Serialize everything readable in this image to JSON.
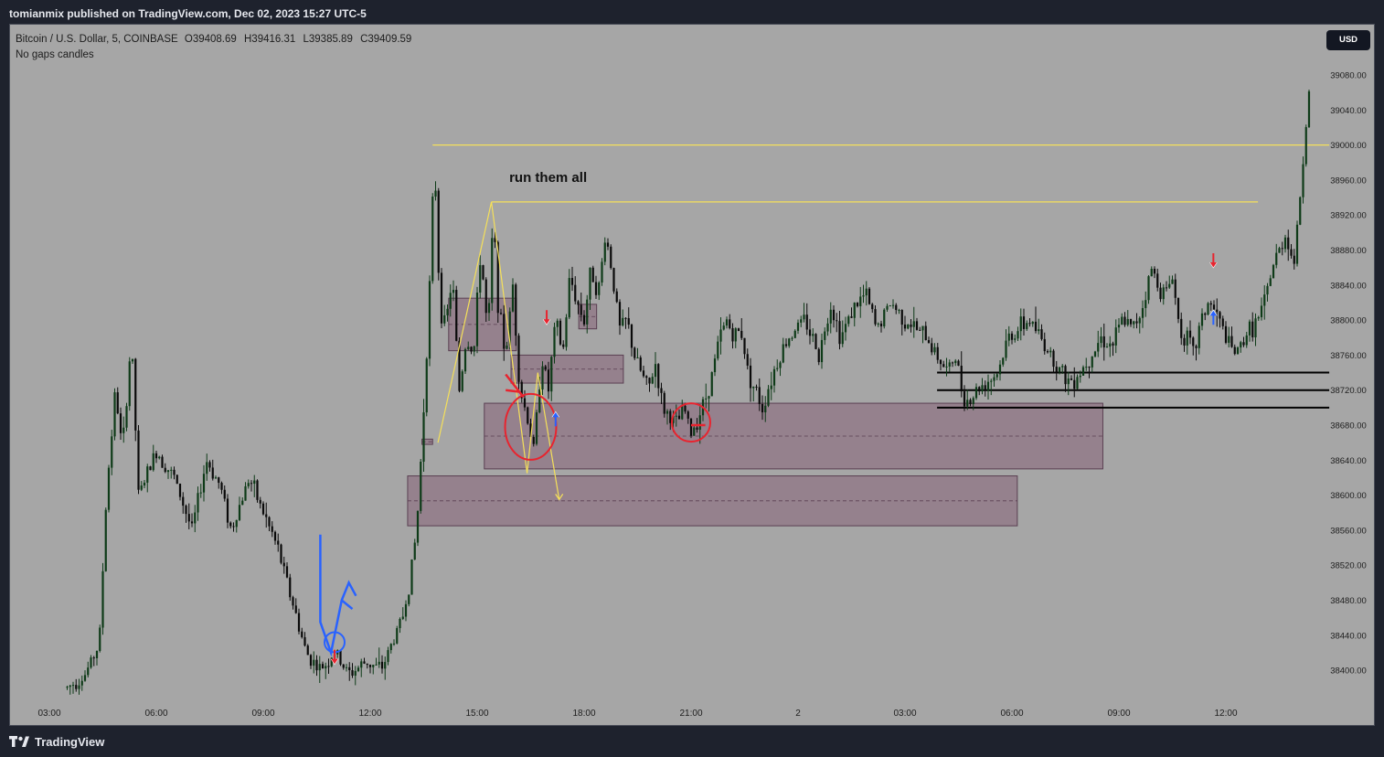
{
  "header": {
    "publisher": "tomianmix published on TradingView.com, Dec 02, 2023 15:27 UTC-5"
  },
  "legend": {
    "symbol": "Bitcoin / U.S. Dollar, 5, COINBASE",
    "open": "O39408.69",
    "high": "H39416.31",
    "low": "L39385.89",
    "close": "C39409.59",
    "note": "No gaps candles"
  },
  "currency_badge": "USD",
  "footer": {
    "brand": "TradingView",
    "logo_icon": "tradingview-logo-icon"
  },
  "colors": {
    "background": "#1e222d",
    "chart_bg": "#a6a6a6",
    "candle_up": "#0e3b18",
    "candle_down": "#0a0a0a",
    "zone_fill": "#8a6a7e",
    "level_yellow": "#f5e05a",
    "annotation_red": "#e8242f",
    "annotation_blue": "#2962ff"
  },
  "annotations": {
    "text": "run them all",
    "arrows": [
      {
        "kind": "down",
        "color": "red",
        "time": "09:00"
      },
      {
        "kind": "down",
        "color": "red",
        "time": "14:55"
      },
      {
        "kind": "up",
        "color": "blue",
        "time": "15:15"
      },
      {
        "kind": "down",
        "color": "red",
        "time": "09:05 (day 2)"
      },
      {
        "kind": "up",
        "color": "blue",
        "time": "09:05 (day 2)"
      }
    ],
    "circles": [
      {
        "color": "red",
        "time": "14:30",
        "price": 38680
      },
      {
        "color": "red",
        "time": "19:00",
        "price": 38683
      },
      {
        "color": "blue",
        "time": "09:00",
        "price": 38430
      }
    ]
  },
  "chart_data": {
    "type": "candlestick",
    "symbol": "Bitcoin / U.S. Dollar",
    "interval": "5",
    "exchange": "COINBASE",
    "ylim": [
      38375,
      39120
    ],
    "y_ticks": [
      "39080.00",
      "39040.00",
      "39000.00",
      "38960.00",
      "38920.00",
      "38880.00",
      "38840.00",
      "38800.00",
      "38760.00",
      "38720.00",
      "38680.00",
      "38640.00",
      "38600.00",
      "38560.00",
      "38520.00",
      "38480.00",
      "38440.00",
      "38400.00"
    ],
    "x_ticks": [
      "03:00",
      "06:00",
      "09:00",
      "12:00",
      "15:00",
      "18:00",
      "21:00",
      "2",
      "03:00",
      "06:00",
      "09:00",
      "12:00"
    ],
    "price_path": [
      [
        1.5,
        38380
      ],
      [
        2.0,
        38395
      ],
      [
        2.4,
        38430
      ],
      [
        2.6,
        38600
      ],
      [
        2.85,
        38720
      ],
      [
        3.05,
        38650
      ],
      [
        3.3,
        38780
      ],
      [
        3.5,
        38600
      ],
      [
        4.0,
        38650
      ],
      [
        4.5,
        38620
      ],
      [
        5.0,
        38560
      ],
      [
        5.4,
        38640
      ],
      [
        5.8,
        38610
      ],
      [
        6.1,
        38560
      ],
      [
        6.6,
        38620
      ],
      [
        7.0,
        38580
      ],
      [
        7.4,
        38540
      ],
      [
        7.8,
        38480
      ],
      [
        8.2,
        38420
      ],
      [
        8.6,
        38400
      ],
      [
        9.0,
        38420
      ],
      [
        9.4,
        38395
      ],
      [
        9.9,
        38410
      ],
      [
        10.3,
        38400
      ],
      [
        10.6,
        38430
      ],
      [
        10.9,
        38460
      ],
      [
        11.1,
        38500
      ],
      [
        11.3,
        38560
      ],
      [
        11.45,
        38660
      ],
      [
        11.6,
        38780
      ],
      [
        11.7,
        38870
      ],
      [
        11.8,
        38990
      ],
      [
        11.95,
        38820
      ],
      [
        12.1,
        38790
      ],
      [
        12.3,
        38850
      ],
      [
        12.5,
        38720
      ],
      [
        12.7,
        38780
      ],
      [
        12.9,
        38760
      ],
      [
        13.1,
        38880
      ],
      [
        13.3,
        38780
      ],
      [
        13.45,
        38920
      ],
      [
        13.6,
        38810
      ],
      [
        13.8,
        38760
      ],
      [
        14.0,
        38840
      ],
      [
        14.2,
        38720
      ],
      [
        14.4,
        38690
      ],
      [
        14.6,
        38650
      ],
      [
        14.8,
        38760
      ],
      [
        15.0,
        38720
      ],
      [
        15.2,
        38800
      ],
      [
        15.4,
        38760
      ],
      [
        15.6,
        38850
      ],
      [
        15.8,
        38820
      ],
      [
        16.0,
        38800
      ],
      [
        16.2,
        38860
      ],
      [
        16.4,
        38830
      ],
      [
        16.6,
        38900
      ],
      [
        16.8,
        38850
      ],
      [
        17.0,
        38790
      ],
      [
        17.2,
        38800
      ],
      [
        17.4,
        38760
      ],
      [
        17.6,
        38740
      ],
      [
        17.8,
        38720
      ],
      [
        18.0,
        38750
      ],
      [
        18.2,
        38700
      ],
      [
        18.4,
        38690
      ],
      [
        18.6,
        38680
      ],
      [
        18.8,
        38700
      ],
      [
        19.0,
        38670
      ],
      [
        19.2,
        38690
      ],
      [
        19.4,
        38710
      ],
      [
        19.6,
        38740
      ],
      [
        19.8,
        38780
      ],
      [
        20.0,
        38800
      ],
      [
        20.2,
        38780
      ],
      [
        20.4,
        38790
      ],
      [
        20.6,
        38740
      ],
      [
        20.8,
        38720
      ],
      [
        21.0,
        38700
      ],
      [
        21.3,
        38740
      ],
      [
        21.6,
        38770
      ],
      [
        21.9,
        38790
      ],
      [
        22.2,
        38800
      ],
      [
        22.6,
        38760
      ],
      [
        22.9,
        38820
      ],
      [
        23.2,
        38780
      ],
      [
        23.5,
        38810
      ],
      [
        23.9,
        38830
      ],
      [
        24.2,
        38790
      ],
      [
        24.6,
        38820
      ],
      [
        25.0,
        38800
      ],
      [
        25.3,
        38790
      ],
      [
        25.6,
        38780
      ],
      [
        25.9,
        38760
      ],
      [
        26.2,
        38740
      ],
      [
        26.4,
        38760
      ],
      [
        26.6,
        38720
      ],
      [
        26.8,
        38705
      ],
      [
        27.0,
        38720
      ],
      [
        27.3,
        38730
      ],
      [
        27.6,
        38740
      ],
      [
        27.9,
        38780
      ],
      [
        28.2,
        38790
      ],
      [
        28.5,
        38800
      ],
      [
        28.8,
        38780
      ],
      [
        29.1,
        38760
      ],
      [
        29.4,
        38740
      ],
      [
        29.6,
        38730
      ],
      [
        29.9,
        38740
      ],
      [
        30.2,
        38760
      ],
      [
        30.5,
        38780
      ],
      [
        30.8,
        38770
      ],
      [
        31.1,
        38800
      ],
      [
        31.4,
        38790
      ],
      [
        31.7,
        38820
      ],
      [
        31.9,
        38860
      ],
      [
        32.1,
        38840
      ],
      [
        32.3,
        38830
      ],
      [
        32.5,
        38850
      ],
      [
        32.7,
        38790
      ],
      [
        32.9,
        38780
      ],
      [
        33.1,
        38760
      ],
      [
        33.3,
        38800
      ],
      [
        33.5,
        38820
      ],
      [
        33.7,
        38810
      ],
      [
        33.9,
        38790
      ],
      [
        34.1,
        38770
      ],
      [
        34.3,
        38760
      ],
      [
        34.5,
        38780
      ],
      [
        34.7,
        38790
      ],
      [
        34.9,
        38800
      ],
      [
        35.1,
        38820
      ],
      [
        35.3,
        38860
      ],
      [
        35.5,
        38880
      ],
      [
        35.7,
        38900
      ],
      [
        35.9,
        38860
      ],
      [
        36.1,
        38950
      ],
      [
        36.3,
        39050
      ],
      [
        36.4,
        39090
      ]
    ],
    "levels": [
      {
        "price": 39000,
        "color": "yellow",
        "x_from": 11.75,
        "x_to": 36.9
      },
      {
        "price": 38935,
        "color": "yellow",
        "x_from": 13.4,
        "x_to": 34.9
      },
      {
        "price": 38740,
        "color": "black",
        "x_from": 25.9,
        "x_to": 36.9
      },
      {
        "price": 38720,
        "color": "black",
        "x_from": 25.9,
        "x_to": 36.9
      },
      {
        "price": 38700,
        "color": "black",
        "x_from": 25.9,
        "x_to": 36.9
      }
    ],
    "zones": [
      {
        "x_from": 11.05,
        "x_to": 28.15,
        "price_top": 38622,
        "price_bottom": 38565
      },
      {
        "x_from": 13.2,
        "x_to": 30.55,
        "price_top": 38705,
        "price_bottom": 38630
      },
      {
        "x_from": 12.2,
        "x_to": 14.1,
        "price_top": 38825,
        "price_bottom": 38765
      },
      {
        "x_from": 13.95,
        "x_to": 17.1,
        "price_top": 38760,
        "price_bottom": 38728
      },
      {
        "x_from": 15.85,
        "x_to": 16.35,
        "price_top": 38818,
        "price_bottom": 38790
      },
      {
        "x_from": 11.45,
        "x_to": 11.75,
        "price_top": 38664,
        "price_bottom": 38658
      }
    ]
  }
}
